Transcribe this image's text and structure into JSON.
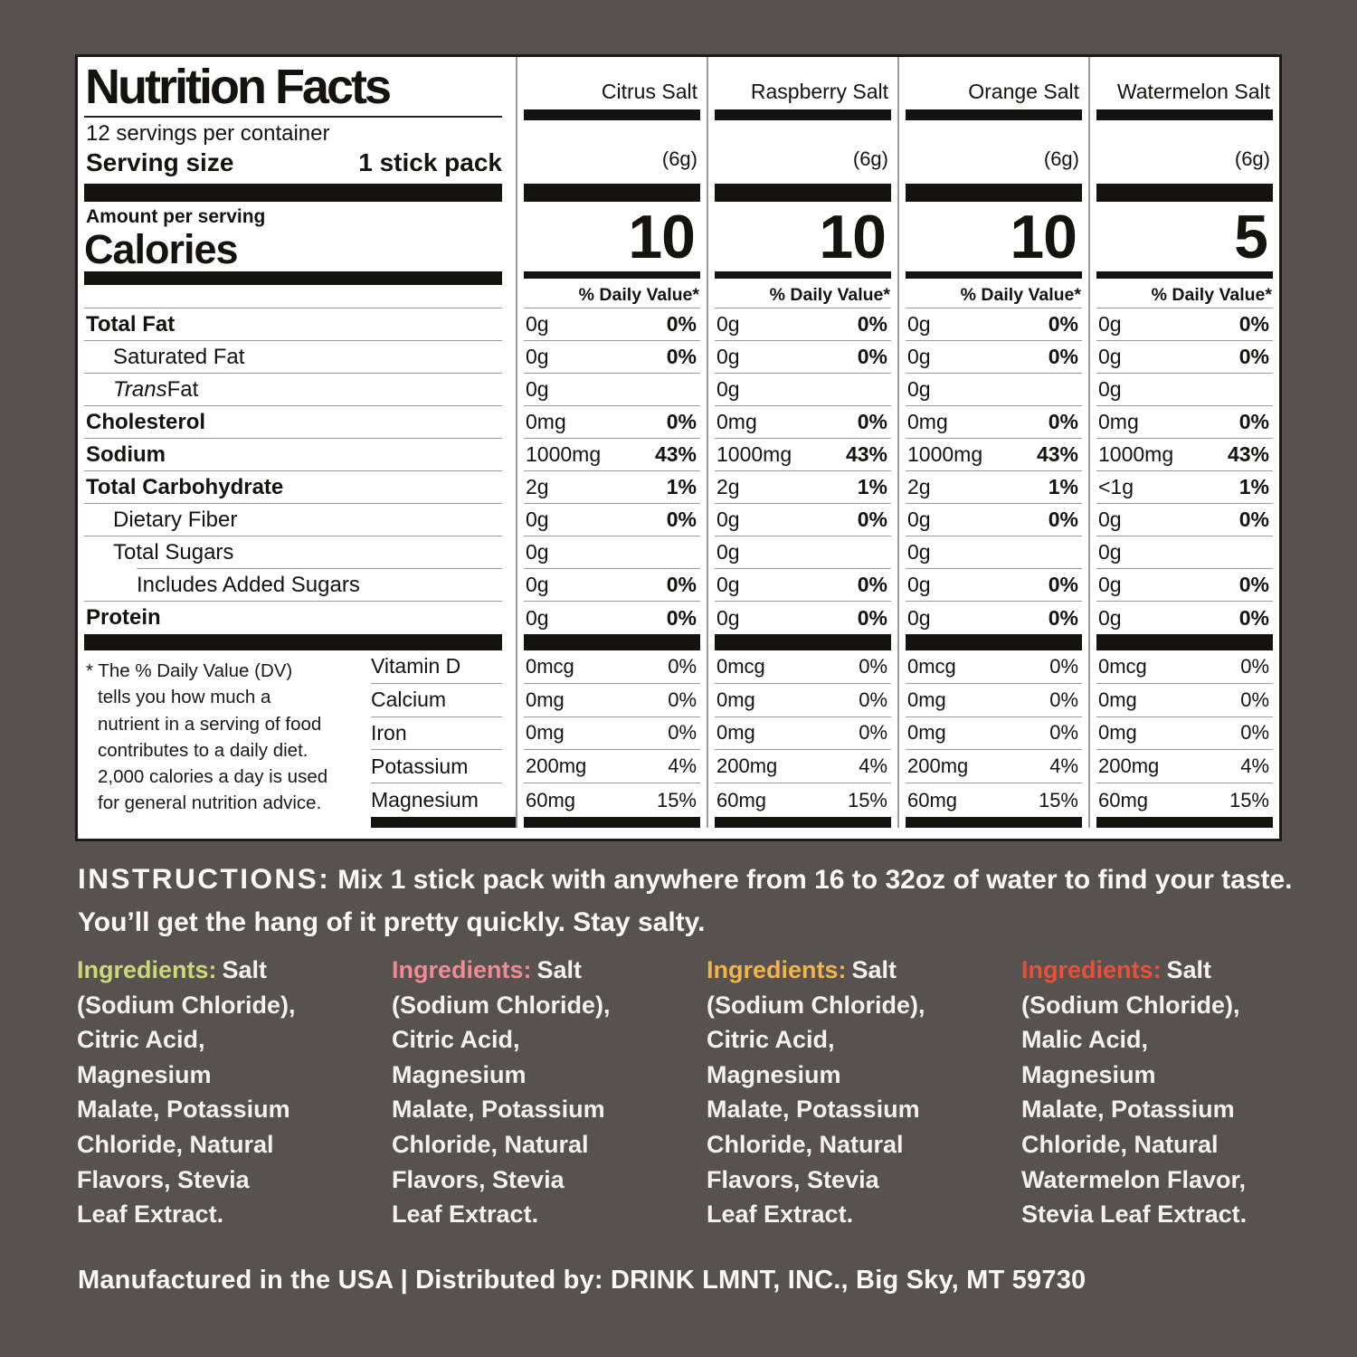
{
  "page": {
    "background_color": "#57524f"
  },
  "label": {
    "title": "Nutrition Facts",
    "servings_per_container": "12 servings per container",
    "serving_size_label": "Serving size",
    "serving_size_value": "1 stick pack",
    "amount_per_serving": "Amount per serving",
    "calories_label": "Calories",
    "daily_value_header": "% Daily Value*",
    "columns": [
      {
        "name": "Citrus Salt",
        "weight": "(6g)",
        "calories": "10"
      },
      {
        "name": "Raspberry Salt",
        "weight": "(6g)",
        "calories": "10"
      },
      {
        "name": "Orange Salt",
        "weight": "(6g)",
        "calories": "10"
      },
      {
        "name": "Watermelon Salt",
        "weight": "(6g)",
        "calories": "5"
      }
    ],
    "rows": [
      {
        "label": "Total Fat",
        "bold": true,
        "indent": 0,
        "values": [
          [
            "0g",
            "0%"
          ],
          [
            "0g",
            "0%"
          ],
          [
            "0g",
            "0%"
          ],
          [
            "0g",
            "0%"
          ]
        ]
      },
      {
        "label": "Saturated Fat",
        "bold": false,
        "indent": 1,
        "values": [
          [
            "0g",
            "0%"
          ],
          [
            "0g",
            "0%"
          ],
          [
            "0g",
            "0%"
          ],
          [
            "0g",
            "0%"
          ]
        ]
      },
      {
        "label": " Fat",
        "italic_prefix": "Trans",
        "bold": false,
        "indent": 1,
        "values": [
          [
            "0g",
            ""
          ],
          [
            "0g",
            ""
          ],
          [
            "0g",
            ""
          ],
          [
            "0g",
            ""
          ]
        ]
      },
      {
        "label": "Cholesterol",
        "bold": true,
        "indent": 0,
        "values": [
          [
            "0mg",
            "0%"
          ],
          [
            "0mg",
            "0%"
          ],
          [
            "0mg",
            "0%"
          ],
          [
            "0mg",
            "0%"
          ]
        ]
      },
      {
        "label": "Sodium",
        "bold": true,
        "indent": 0,
        "values": [
          [
            "1000mg",
            "43%"
          ],
          [
            "1000mg",
            "43%"
          ],
          [
            "1000mg",
            "43%"
          ],
          [
            "1000mg",
            "43%"
          ]
        ]
      },
      {
        "label": "Total Carbohydrate",
        "bold": true,
        "indent": 0,
        "values": [
          [
            "2g",
            "1%"
          ],
          [
            "2g",
            "1%"
          ],
          [
            "2g",
            "1%"
          ],
          [
            "<1g",
            "1%"
          ]
        ]
      },
      {
        "label": "Dietary Fiber",
        "bold": false,
        "indent": 1,
        "values": [
          [
            "0g",
            "0%"
          ],
          [
            "0g",
            "0%"
          ],
          [
            "0g",
            "0%"
          ],
          [
            "0g",
            "0%"
          ]
        ]
      },
      {
        "label": "Total Sugars",
        "bold": false,
        "indent": 1,
        "values": [
          [
            "0g",
            ""
          ],
          [
            "0g",
            ""
          ],
          [
            "0g",
            ""
          ],
          [
            "0g",
            ""
          ]
        ]
      },
      {
        "label": "Includes Added Sugars",
        "bold": false,
        "indent": 2,
        "values": [
          [
            "0g",
            "0%"
          ],
          [
            "0g",
            "0%"
          ],
          [
            "0g",
            "0%"
          ],
          [
            "0g",
            "0%"
          ]
        ]
      },
      {
        "label": "Protein",
        "bold": true,
        "indent": 0,
        "values": [
          [
            "0g",
            "0%"
          ],
          [
            "0g",
            "0%"
          ],
          [
            "0g",
            "0%"
          ],
          [
            "0g",
            "0%"
          ]
        ]
      }
    ],
    "vitamins": [
      {
        "label": "Vitamin D",
        "values": [
          [
            "0mcg",
            "0%"
          ],
          [
            "0mcg",
            "0%"
          ],
          [
            "0mcg",
            "0%"
          ],
          [
            "0mcg",
            "0%"
          ]
        ]
      },
      {
        "label": "Calcium",
        "values": [
          [
            "0mg",
            "0%"
          ],
          [
            "0mg",
            "0%"
          ],
          [
            "0mg",
            "0%"
          ],
          [
            "0mg",
            "0%"
          ]
        ]
      },
      {
        "label": "Iron",
        "values": [
          [
            "0mg",
            "0%"
          ],
          [
            "0mg",
            "0%"
          ],
          [
            "0mg",
            "0%"
          ],
          [
            "0mg",
            "0%"
          ]
        ]
      },
      {
        "label": "Potassium",
        "values": [
          [
            "200mg",
            "4%"
          ],
          [
            "200mg",
            "4%"
          ],
          [
            "200mg",
            "4%"
          ],
          [
            "200mg",
            "4%"
          ]
        ]
      },
      {
        "label": "Magnesium",
        "values": [
          [
            "60mg",
            "15%"
          ],
          [
            "60mg",
            "15%"
          ],
          [
            "60mg",
            "15%"
          ],
          [
            "60mg",
            "15%"
          ]
        ]
      }
    ],
    "footnote_lines": [
      "* The % Daily Value (DV)",
      "tells you how much a",
      "nutrient in a serving of food",
      "contributes to a daily diet.",
      "2,000 calories a day is used",
      "for general nutrition advice."
    ]
  },
  "instructions": {
    "label": "INSTRUCTIONS:",
    "text": "Mix 1 stick pack with anywhere from 16 to 32oz of water to find your taste. You’ll get the hang of it pretty quickly. Stay salty."
  },
  "ingredients": [
    {
      "flavor": "Citrus Salt",
      "label": "Ingredients:",
      "color": "#c9d878",
      "lines": [
        "Salt",
        "(Sodium Chloride),",
        "Citric Acid,",
        "Magnesium",
        "Malate, Potassium",
        "Chloride, Natural",
        "Flavors, Stevia",
        "Leaf Extract."
      ]
    },
    {
      "flavor": "Raspberry Salt",
      "label": "Ingredients:",
      "color": "#ee8b93",
      "lines": [
        "Salt",
        "(Sodium Chloride),",
        "Citric Acid,",
        "Magnesium",
        "Malate, Potassium",
        "Chloride, Natural",
        "Flavors, Stevia",
        "Leaf Extract."
      ]
    },
    {
      "flavor": "Orange Salt",
      "label": "Ingredients:",
      "color": "#f1b44c",
      "lines": [
        "Salt",
        "(Sodium Chloride),",
        "Citric Acid,",
        "Magnesium",
        "Malate, Potassium",
        "Chloride, Natural",
        "Flavors, Stevia",
        "Leaf Extract."
      ]
    },
    {
      "flavor": "Watermelon Salt",
      "label": "Ingredients:",
      "color": "#e8503a",
      "lines": [
        "Salt",
        "(Sodium Chloride),",
        "Malic Acid,",
        "Magnesium",
        "Malate, Potassium",
        "Chloride, Natural",
        "Watermelon Flavor,",
        "Stevia Leaf Extract."
      ]
    }
  ],
  "footer": "Manufactured in the USA  |  Distributed by: DRINK LMNT, INC., Big Sky, MT 59730"
}
